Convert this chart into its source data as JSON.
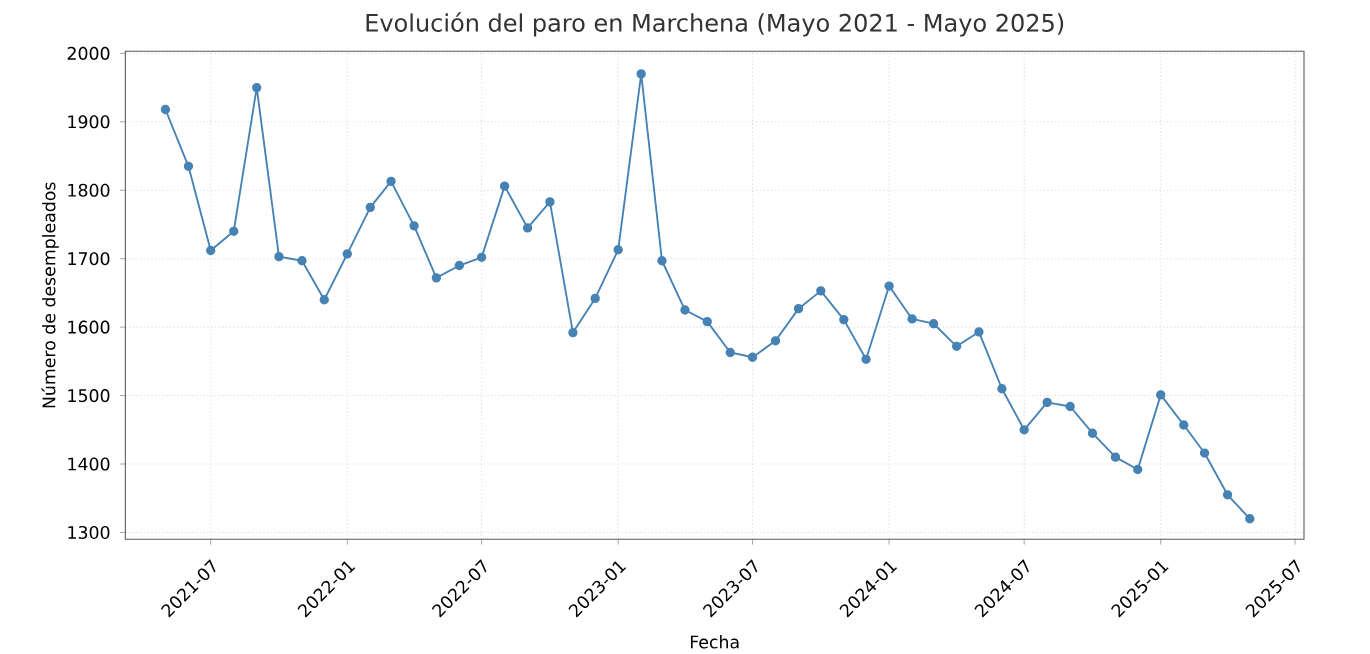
{
  "chart_data": {
    "type": "line",
    "title": "Evolución del paro en Marchena (Mayo 2021 - Mayo 2025)",
    "xlabel": "Fecha",
    "ylabel": "Número de desempleados",
    "x": [
      "2021-05",
      "2021-06",
      "2021-07",
      "2021-08",
      "2021-09",
      "2021-10",
      "2021-11",
      "2021-12",
      "2022-01",
      "2022-02",
      "2022-03",
      "2022-04",
      "2022-05",
      "2022-06",
      "2022-07",
      "2022-08",
      "2022-09",
      "2022-10",
      "2022-11",
      "2022-12",
      "2023-01",
      "2023-02",
      "2023-03",
      "2023-04",
      "2023-05",
      "2023-06",
      "2023-07",
      "2023-08",
      "2023-09",
      "2023-10",
      "2023-11",
      "2023-12",
      "2024-01",
      "2024-02",
      "2024-03",
      "2024-04",
      "2024-05",
      "2024-06",
      "2024-07",
      "2024-08",
      "2024-09",
      "2024-10",
      "2024-11",
      "2024-12",
      "2025-01",
      "2025-02",
      "2025-03",
      "2025-04",
      "2025-05"
    ],
    "values": [
      1918,
      1835,
      1712,
      1740,
      1950,
      1703,
      1697,
      1640,
      1707,
      1775,
      1813,
      1748,
      1672,
      1690,
      1702,
      1806,
      1745,
      1783,
      1592,
      1642,
      1713,
      1970,
      1697,
      1625,
      1608,
      1563,
      1556,
      1580,
      1627,
      1653,
      1611,
      1553,
      1660,
      1612,
      1605,
      1572,
      1593,
      1510,
      1450,
      1490,
      1484,
      1445,
      1410,
      1392,
      1501,
      1457,
      1416,
      1355,
      1320
    ],
    "color": "#4682b4",
    "marker": "circle",
    "line_style": "solid",
    "grid": true,
    "xlim": [
      "2021-03-08",
      "2025-07-13"
    ],
    "xticks": [
      "2021-07",
      "2022-01",
      "2022-07",
      "2023-01",
      "2023-07",
      "2024-01",
      "2024-07",
      "2025-01",
      "2025-07"
    ],
    "ylim": [
      1290,
      2003
    ],
    "yticks": [
      1300,
      1400,
      1500,
      1600,
      1700,
      1800,
      1900,
      2000
    ]
  }
}
